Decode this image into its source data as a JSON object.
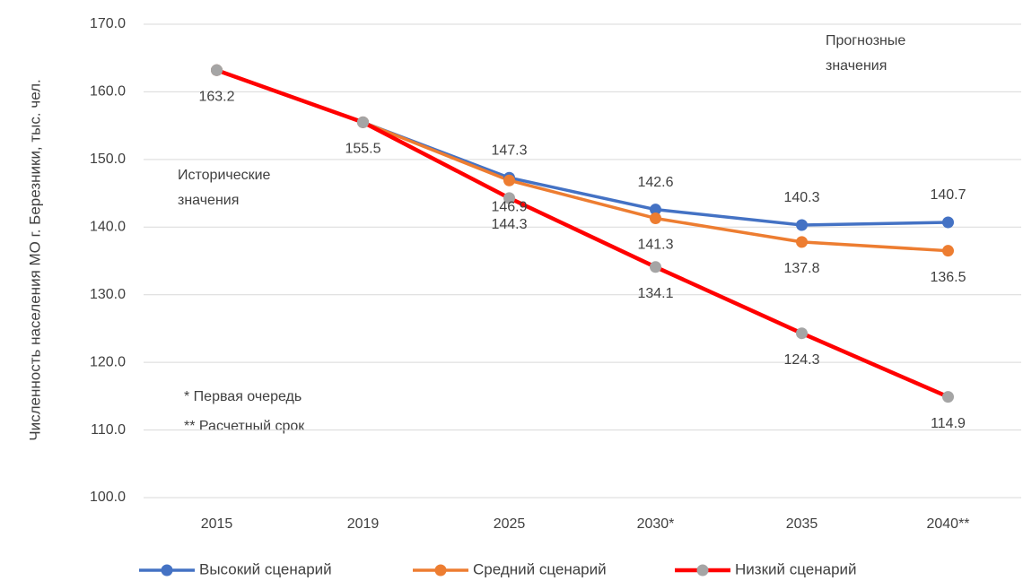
{
  "chart_data": {
    "type": "line",
    "y_axis_label": "Численность населения МО г. Березники, тыс. чел.",
    "categories": [
      "2015",
      "2019",
      "2025",
      "2030*",
      "2035",
      "2040**"
    ],
    "series": [
      {
        "name": "Высокий сценарий",
        "color": "#4472c4",
        "marker_color": "#4472c4",
        "values": [
          163.2,
          155.5,
          147.3,
          142.6,
          140.3,
          140.7
        ],
        "value_labels": [
          null,
          null,
          "147.3",
          "142.6",
          "140.3",
          "140.7"
        ]
      },
      {
        "name": "Средний сценарий",
        "color": "#ed7d31",
        "marker_color": "#ed7d31",
        "values": [
          163.2,
          155.5,
          146.9,
          141.3,
          137.8,
          136.5
        ],
        "value_labels": [
          null,
          null,
          "146.9",
          "141.3",
          "137.8",
          "136.5"
        ]
      },
      {
        "name": "Низкий сценарий",
        "color": "#ff0000",
        "marker_color": "#a5a5a5",
        "values": [
          163.2,
          155.5,
          144.3,
          134.1,
          124.3,
          114.9
        ],
        "value_labels": [
          "163.2",
          "155.5",
          "144.3",
          "134.1",
          "124.3",
          "114.9"
        ]
      }
    ],
    "ylim": [
      100,
      170
    ],
    "yticks": [
      {
        "value": 100,
        "label": "100.0"
      },
      {
        "value": 110,
        "label": "110.0"
      },
      {
        "value": 120,
        "label": "120.0"
      },
      {
        "value": 130,
        "label": "130.0"
      },
      {
        "value": 140,
        "label": "140.0"
      },
      {
        "value": 150,
        "label": "150.0"
      },
      {
        "value": 160,
        "label": "160.0"
      },
      {
        "value": 170,
        "label": "170.0"
      }
    ],
    "grid": true,
    "legend": "bottom",
    "annotations": [
      "Прогнозные значения",
      "Исторические значения",
      "* Первая очередь",
      "** Расчетный срок"
    ]
  }
}
